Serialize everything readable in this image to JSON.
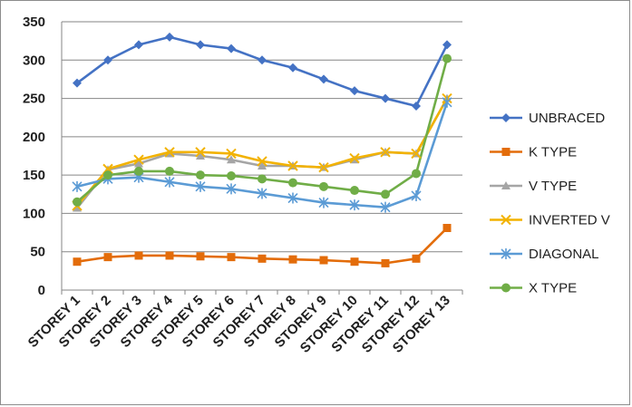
{
  "chart_data": {
    "type": "line",
    "title": "",
    "xlabel": "",
    "ylabel": "",
    "ylim": [
      0,
      350
    ],
    "ytick_step": 50,
    "grid": "horizontal",
    "legend_position": "right",
    "categories": [
      "STOREY 1",
      "STOREY 2",
      "STOREY 3",
      "STOREY 4",
      "STOREY 5",
      "STOREY 6",
      "STOREY 7",
      "STOREY 8",
      "STOREY 9",
      "STOREY 10",
      "STOREY 11",
      "STOREY 12",
      "STOREY 13"
    ],
    "series": [
      {
        "name": "UNBRACED",
        "color": "#4472c4",
        "marker": "diamond",
        "values": [
          270,
          300,
          320,
          330,
          320,
          315,
          300,
          290,
          275,
          260,
          250,
          240,
          320
        ]
      },
      {
        "name": "K TYPE",
        "color": "#e36c0a",
        "marker": "square",
        "values": [
          37,
          43,
          45,
          45,
          44,
          43,
          41,
          40,
          39,
          37,
          35,
          41,
          81
        ]
      },
      {
        "name": "V TYPE",
        "color": "#a5a5a5",
        "marker": "triangle",
        "values": [
          107,
          157,
          165,
          178,
          175,
          170,
          162,
          162,
          160,
          170,
          180,
          178,
          250
        ]
      },
      {
        "name": "INVERTED V",
        "color": "#f2b200",
        "marker": "x",
        "values": [
          110,
          158,
          170,
          180,
          180,
          178,
          168,
          162,
          160,
          172,
          180,
          178,
          250
        ]
      },
      {
        "name": "DIAGONAL",
        "color": "#5b9bd5",
        "marker": "asterisk",
        "values": [
          135,
          145,
          147,
          141,
          135,
          132,
          126,
          120,
          114,
          111,
          108,
          123,
          245
        ]
      },
      {
        "name": "X TYPE",
        "color": "#70ad47",
        "marker": "circle",
        "values": [
          115,
          150,
          155,
          155,
          150,
          149,
          145,
          140,
          135,
          130,
          125,
          152,
          302
        ]
      }
    ]
  }
}
